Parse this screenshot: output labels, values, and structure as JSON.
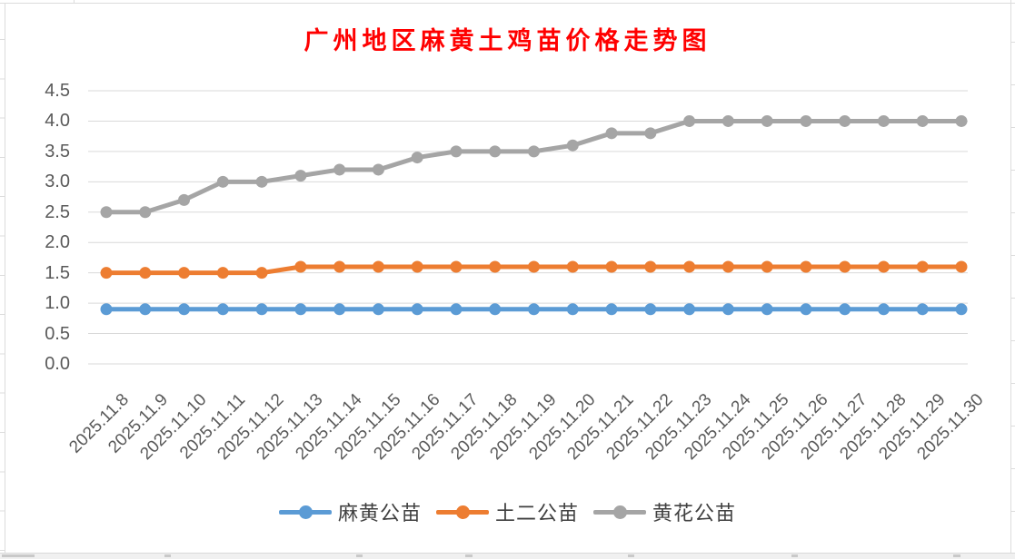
{
  "chart_data": {
    "type": "line",
    "title": "广州地区麻黄土鸡苗价格走势图",
    "title_color": "#FF0000",
    "categories": [
      "2025.11.8",
      "2025.11.9",
      "2025.11.10",
      "2025.11.11",
      "2025.11.12",
      "2025.11.13",
      "2025.11.14",
      "2025.11.15",
      "2025.11.16",
      "2025.11.17",
      "2025.11.18",
      "2025.11.19",
      "2025.11.20",
      "2025.11.21",
      "2025.11.22",
      "2025.11.23",
      "2025.11.24",
      "2025.11.25",
      "2025.11.26",
      "2025.11.27",
      "2025.11.28",
      "2025.11.29",
      "2025.11.30"
    ],
    "series": [
      {
        "name": "麻黄公苗",
        "color": "#5B9BD5",
        "values": [
          0.9,
          0.9,
          0.9,
          0.9,
          0.9,
          0.9,
          0.9,
          0.9,
          0.9,
          0.9,
          0.9,
          0.9,
          0.9,
          0.9,
          0.9,
          0.9,
          0.9,
          0.9,
          0.9,
          0.9,
          0.9,
          0.9,
          0.9
        ]
      },
      {
        "name": "土二公苗",
        "color": "#ED7D31",
        "values": [
          1.5,
          1.5,
          1.5,
          1.5,
          1.5,
          1.6,
          1.6,
          1.6,
          1.6,
          1.6,
          1.6,
          1.6,
          1.6,
          1.6,
          1.6,
          1.6,
          1.6,
          1.6,
          1.6,
          1.6,
          1.6,
          1.6,
          1.6
        ]
      },
      {
        "name": "黄花公苗",
        "color": "#A5A5A5",
        "values": [
          2.5,
          2.5,
          2.7,
          3.0,
          3.0,
          3.1,
          3.2,
          3.2,
          3.4,
          3.5,
          3.5,
          3.5,
          3.6,
          3.8,
          3.8,
          4.0,
          4.0,
          4.0,
          4.0,
          4.0,
          4.0,
          4.0,
          4.0
        ]
      }
    ],
    "xlabel": "",
    "ylabel": "",
    "ylim": [
      0,
      4.5
    ],
    "y_step": 0.5,
    "y_tick_labels": [
      "0.0",
      "0.5",
      "1.0",
      "1.5",
      "2.0",
      "2.5",
      "3.0",
      "3.5",
      "4.0",
      "4.5"
    ],
    "grid": true,
    "gridline_color": "#D9D9D9",
    "axis_label_color": "#595959",
    "legend_position": "bottom"
  }
}
